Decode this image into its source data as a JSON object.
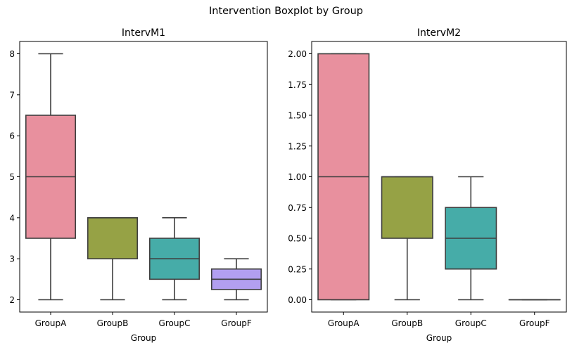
{
  "suptitle": "Intervention Boxplot by Group",
  "chart_data": [
    {
      "type": "box",
      "title": "IntervM1",
      "xlabel": "Group",
      "ylabel": "",
      "categories": [
        "GroupA",
        "GroupB",
        "GroupC",
        "GroupF"
      ],
      "ylim": [
        1.7,
        8.3
      ],
      "yticks": [
        2,
        3,
        4,
        5,
        6,
        7,
        8
      ],
      "ytick_labels": [
        "2",
        "3",
        "4",
        "5",
        "6",
        "7",
        "8"
      ],
      "boxes": [
        {
          "category": "GroupA",
          "whislo": 2,
          "q1": 3.5,
          "median": 5,
          "q3": 6.5,
          "whishi": 8,
          "color": "#e8909e"
        },
        {
          "category": "GroupB",
          "whislo": 2,
          "q1": 3,
          "median": 4,
          "q3": 4,
          "whishi": 4,
          "color": "#96a245"
        },
        {
          "category": "GroupC",
          "whislo": 2,
          "q1": 2.5,
          "median": 3,
          "q3": 3.5,
          "whishi": 4,
          "color": "#46aca8"
        },
        {
          "category": "GroupF",
          "whislo": 2,
          "q1": 2.25,
          "median": 2.5,
          "q3": 2.75,
          "whishi": 3,
          "color": "#b29ff0"
        }
      ]
    },
    {
      "type": "box",
      "title": "IntervM2",
      "xlabel": "Group",
      "ylabel": "",
      "categories": [
        "GroupA",
        "GroupB",
        "GroupC",
        "GroupF"
      ],
      "ylim": [
        -0.1,
        2.1
      ],
      "yticks": [
        0.0,
        0.25,
        0.5,
        0.75,
        1.0,
        1.25,
        1.5,
        1.75,
        2.0
      ],
      "ytick_labels": [
        "0.00",
        "0.25",
        "0.50",
        "0.75",
        "1.00",
        "1.25",
        "1.50",
        "1.75",
        "2.00"
      ],
      "boxes": [
        {
          "category": "GroupA",
          "whislo": 0,
          "q1": 0,
          "median": 1,
          "q3": 2,
          "whishi": 2,
          "color": "#e8909e"
        },
        {
          "category": "GroupB",
          "whislo": 0,
          "q1": 0.5,
          "median": 1,
          "q3": 1,
          "whishi": 1,
          "color": "#96a245"
        },
        {
          "category": "GroupC",
          "whislo": 0,
          "q1": 0.25,
          "median": 0.5,
          "q3": 0.75,
          "whishi": 1,
          "color": "#46aca8"
        },
        {
          "category": "GroupF",
          "whislo": 0,
          "q1": 0,
          "median": 0,
          "q3": 0,
          "whishi": 0,
          "color": "#b29ff0"
        }
      ]
    }
  ],
  "colors": {
    "line": "#3f3f3f",
    "axes": "#000000",
    "background": "#ffffff"
  }
}
